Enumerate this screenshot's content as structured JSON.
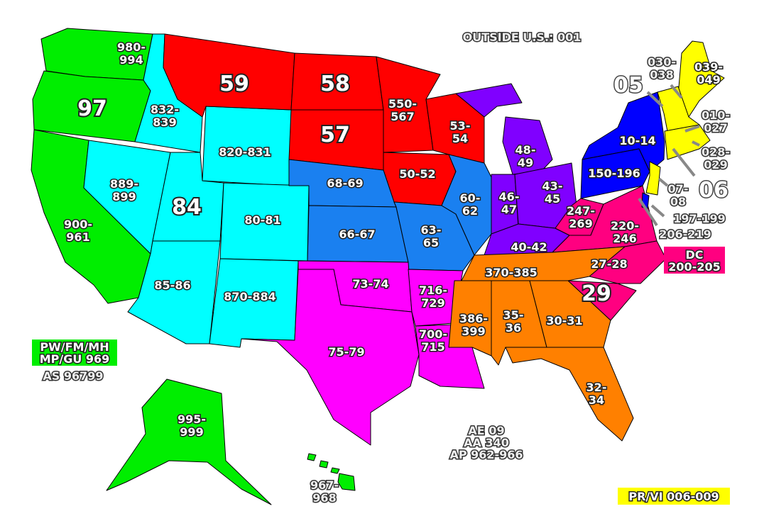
{
  "map": {
    "colors": {
      "west": "#00ee00",
      "mountain": "#00ffff",
      "north_central": "#ff0000",
      "central": "#1a80f0",
      "great_lakes": "#8000ff",
      "mid_atlantic": "#0000ff",
      "new_england": "#ffff00",
      "south_central": "#ff00ff",
      "southeast_atlantic": "#ff0080",
      "southeast": "#ff8000"
    },
    "labels": {
      "wa": [
        "980-",
        "994"
      ],
      "or": "97",
      "ca": [
        "900-",
        "961"
      ],
      "id": [
        "832-",
        "839"
      ],
      "nv": [
        "889-",
        "899"
      ],
      "ut": "84",
      "az": "85-86",
      "mt": "59",
      "wy": "820-831",
      "co": "80-81",
      "nm": "870-884",
      "nd": "58",
      "sd": "57",
      "mn": [
        "550-",
        "567"
      ],
      "wi": [
        "53-",
        "54"
      ],
      "ia": "50-52",
      "ne": "68-69",
      "ks": "66-67",
      "mo": [
        "63-",
        "65"
      ],
      "il": [
        "60-",
        "62"
      ],
      "mi": [
        "48-",
        "49"
      ],
      "in": [
        "46-",
        "47"
      ],
      "oh": [
        "43-",
        "45"
      ],
      "ky": "40-42",
      "ny": "10-14",
      "pa": "150-196",
      "wv": [
        "247-",
        "269"
      ],
      "va": [
        "220-",
        "246"
      ],
      "nc": "27-28",
      "sc": "29",
      "ok": "73-74",
      "tx": "75-79",
      "ar": [
        "716-",
        "729"
      ],
      "la": [
        "700-",
        "715"
      ],
      "tn": "370-385",
      "ms": [
        "386-",
        "399"
      ],
      "al": [
        "35-",
        "36"
      ],
      "ga": "30-31",
      "fl": [
        "32-",
        "34"
      ],
      "ak": [
        "995-",
        "999"
      ],
      "hi": [
        "967-",
        "968"
      ],
      "vt": "05",
      "nh": [
        "030-",
        "038"
      ],
      "me": [
        "039-",
        "049"
      ],
      "ma": [
        "010-",
        "027"
      ],
      "ri": [
        "028-",
        "029"
      ],
      "ct": "06",
      "nj": [
        "07-",
        "08"
      ],
      "de": "197-199",
      "md": "206-219",
      "dc": [
        "DC",
        "200-205"
      ]
    },
    "outside": {
      "outside_us": "OUTSIDE U.S.: 001",
      "pacific": [
        "PW/FM/MH",
        "MP/GU 969"
      ],
      "as": "AS 96799",
      "military": [
        "AE 09",
        "AA 340",
        "AP 962-966"
      ],
      "prvi": "PR/VI 006-009"
    }
  }
}
